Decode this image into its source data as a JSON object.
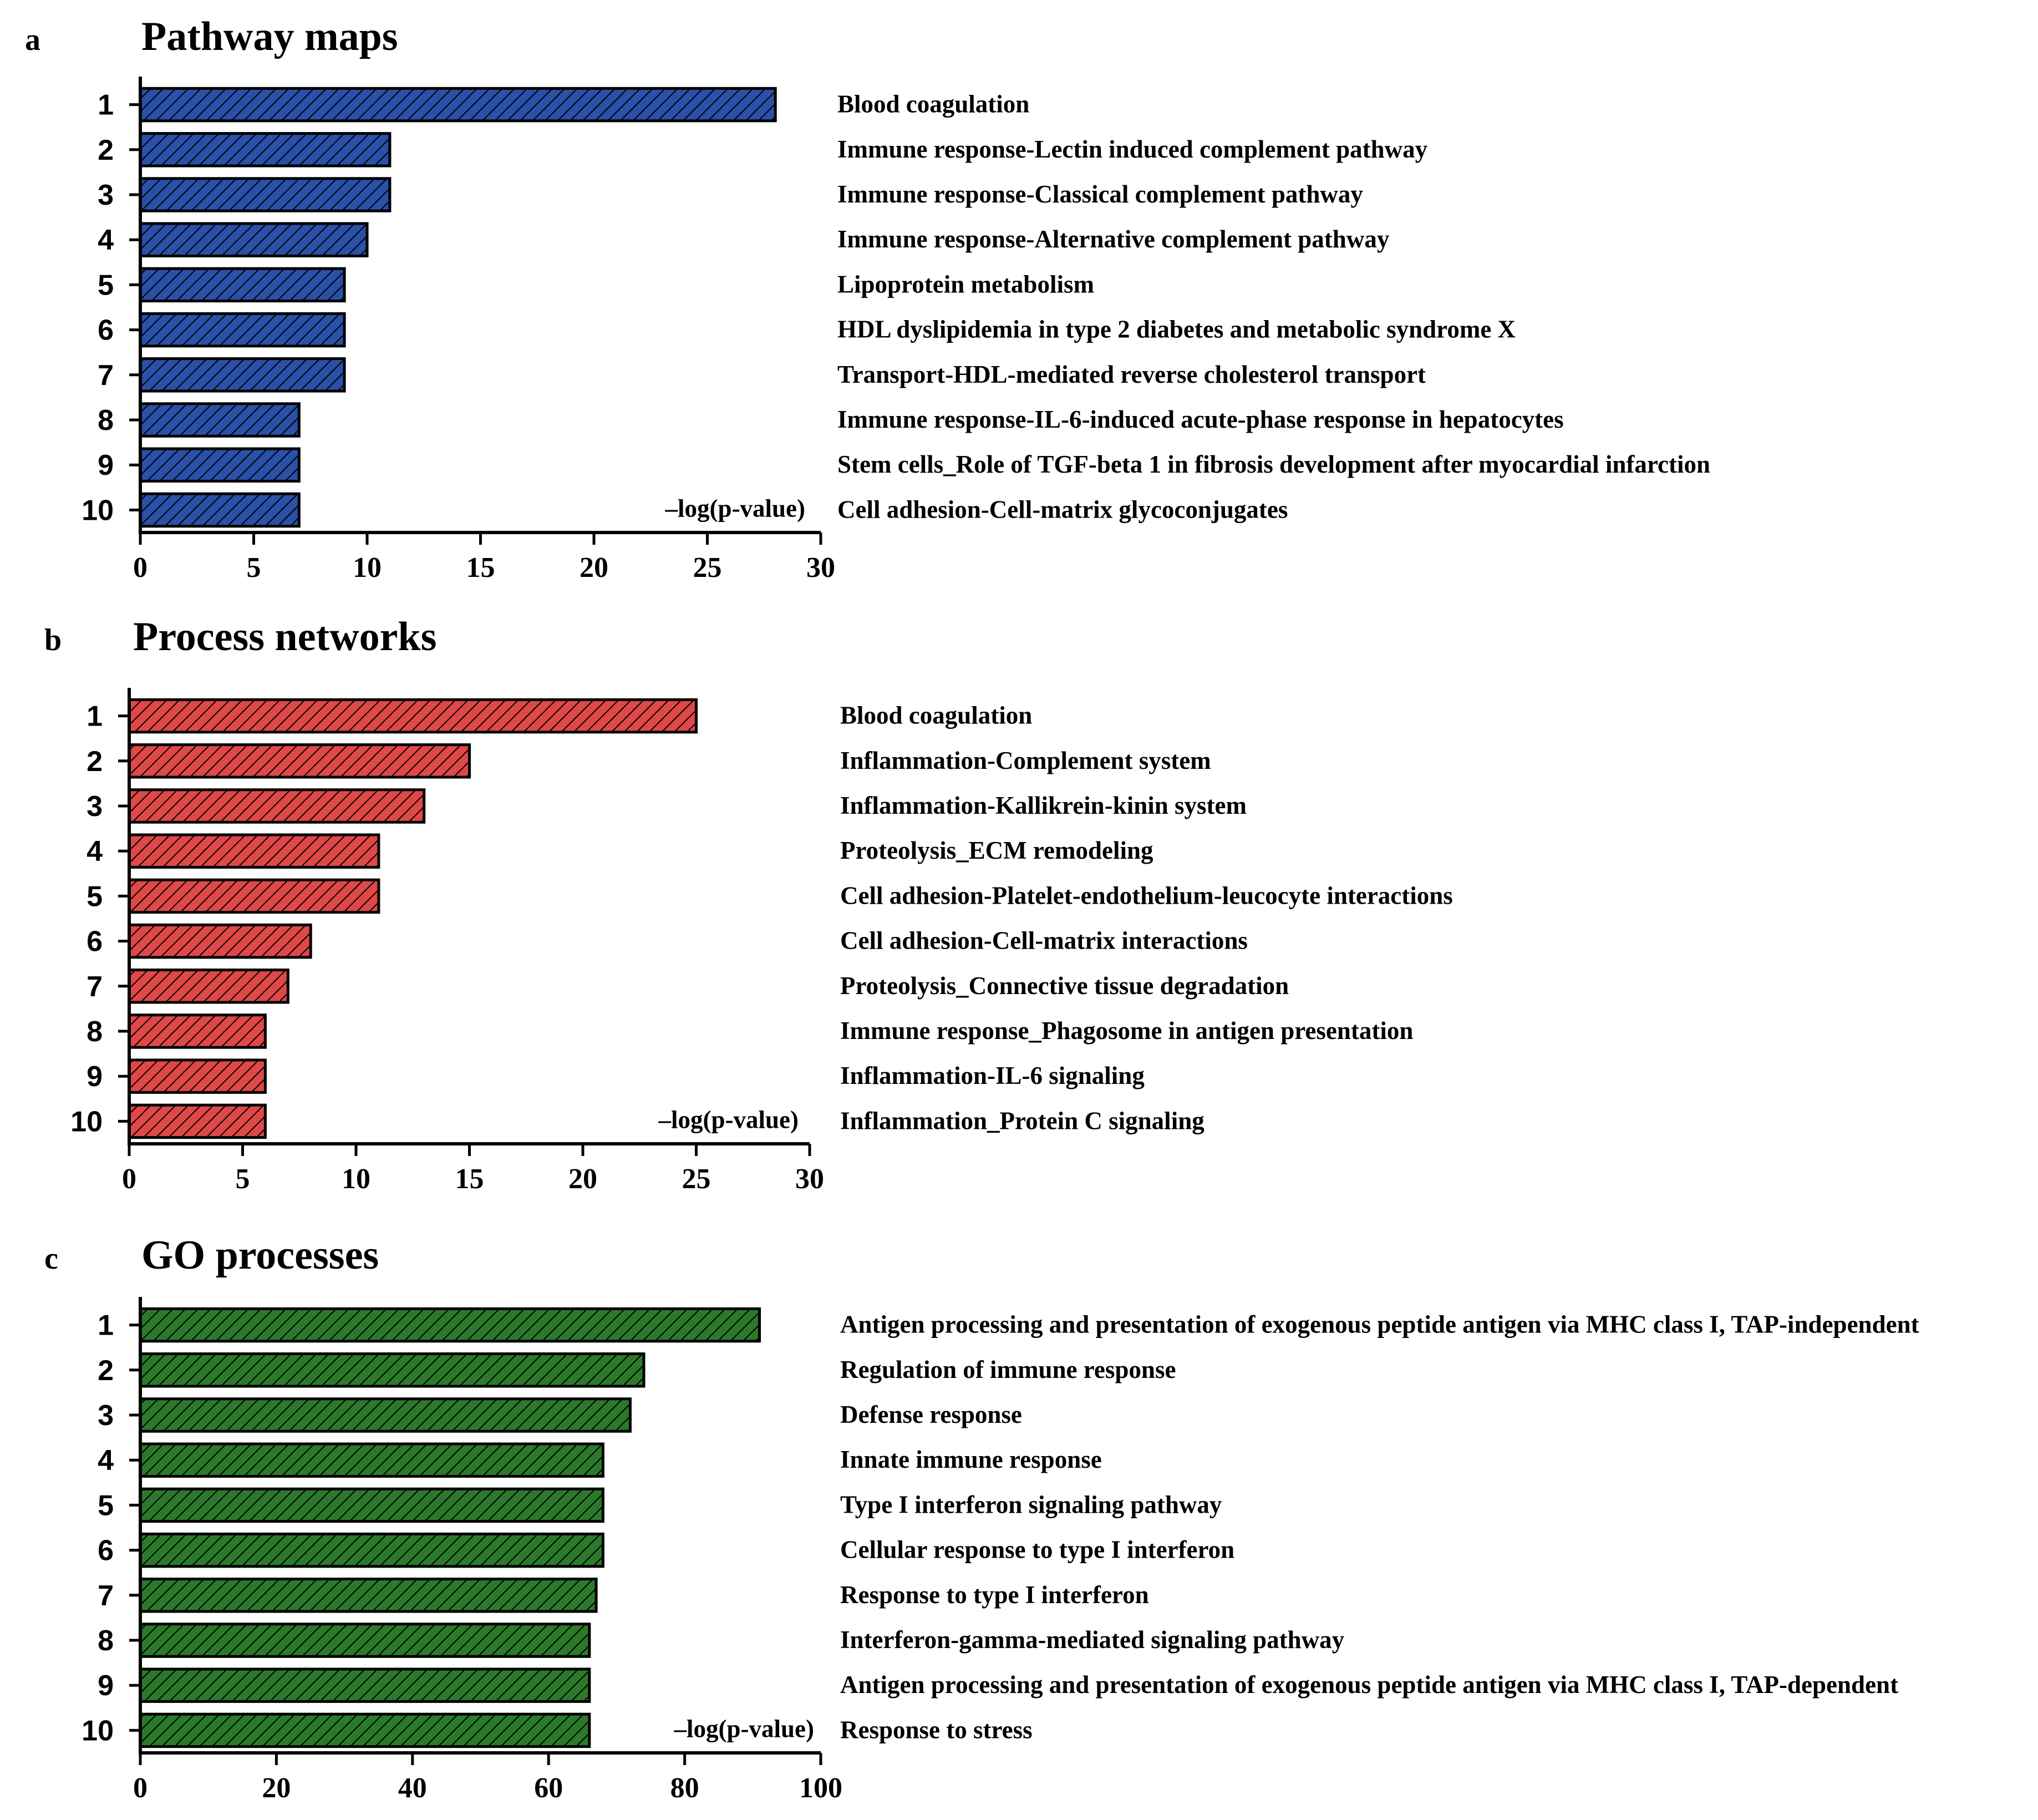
{
  "chart_data": [
    {
      "type": "bar",
      "orientation": "horizontal",
      "panel": "a",
      "title": "Pathway maps",
      "xlabel": "–log(p-value)",
      "color": "#2a50a8",
      "fill_pattern": "diagonal-hatch",
      "xlim": [
        0,
        30
      ],
      "xticks": [
        0,
        5,
        10,
        15,
        20,
        25,
        30
      ],
      "categories": [
        "1",
        "2",
        "3",
        "4",
        "5",
        "6",
        "7",
        "8",
        "9",
        "10"
      ],
      "values": [
        28,
        11,
        11,
        10,
        9,
        9,
        9,
        7,
        7,
        7
      ],
      "descriptions": [
        "Blood coagulation",
        "Immune response-Lectin induced complement pathway",
        "Immune response-Classical complement pathway",
        "Immune response-Alternative complement pathway",
        "Lipoprotein metabolism",
        "HDL dyslipidemia in type 2 diabetes and metabolic syndrome X",
        "Transport-HDL-mediated  reverse cholesterol transport",
        "Immune response-IL-6-induced acute-phase response in hepatocytes",
        "Stem cells_Role of TGF-beta 1 in fibrosis development after myocardial  infarction",
        "Cell adhesion-Cell-matrix glycoconjugates"
      ]
    },
    {
      "type": "bar",
      "orientation": "horizontal",
      "panel": "b",
      "title": "Process networks",
      "xlabel": "–log(p-value)",
      "color": "#e04848",
      "fill_pattern": "diagonal-hatch",
      "xlim": [
        0,
        30
      ],
      "xticks": [
        0,
        5,
        10,
        15,
        20,
        25,
        30
      ],
      "categories": [
        "1",
        "2",
        "3",
        "4",
        "5",
        "6",
        "7",
        "8",
        "9",
        "10"
      ],
      "values": [
        25,
        15,
        13,
        11,
        11,
        8,
        7,
        6,
        6,
        6
      ],
      "descriptions": [
        "Blood coagulation",
        "Inflammation-Complement  system",
        "Inflammation-Kallikrein-kinin system",
        "Proteolysis_ECM remodeling",
        "Cell adhesion-Platelet-endothelium-leucocyte  interactions",
        "Cell adhesion-Cell-matrix interactions",
        "Proteolysis_Connective tissue degradation",
        "Immune response_Phagosome in antigen presentation",
        "Inflammation-IL-6 signaling",
        "Inflammation_Protein C signaling"
      ]
    },
    {
      "type": "bar",
      "orientation": "horizontal",
      "panel": "c",
      "title": "GO processes",
      "xlabel": "–log(p-value)",
      "color": "#2b7a2b",
      "fill_pattern": "diagonal-hatch",
      "xlim": [
        0,
        100
      ],
      "xticks": [
        0,
        20,
        40,
        60,
        80,
        100
      ],
      "categories": [
        "1",
        "2",
        "3",
        "4",
        "5",
        "6",
        "7",
        "8",
        "9",
        "10"
      ],
      "values": [
        91,
        74,
        72,
        68,
        68,
        68,
        67,
        66,
        66,
        66
      ],
      "descriptions": [
        "Antigen processing and presentation of exogenous peptide antigen via MHC class I, TAP-independent",
        "Regulation of immune response",
        "Defense response",
        "Innate immune response",
        "Type I interferon signaling pathway",
        "Cellular  response to type I interferon",
        "Response to type I interferon",
        "Interferon-gamma-mediated  signaling pathway",
        "Antigen processing and presentation of exogenous peptide antigen via MHC class I, TAP-dependent",
        "Response to stress"
      ]
    }
  ]
}
